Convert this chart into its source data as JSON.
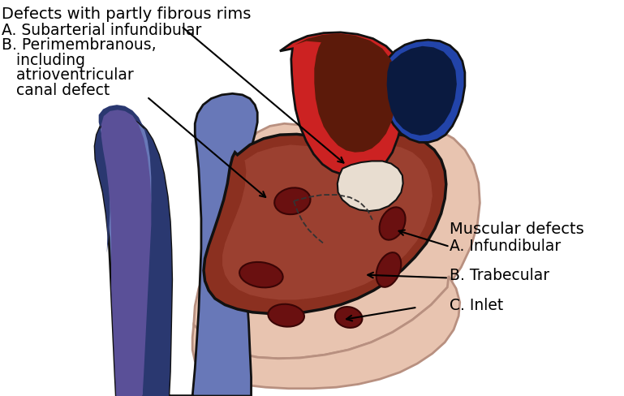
{
  "bg_color": "#ffffff",
  "text_color": "#000000",
  "fig_width": 9.99,
  "fig_height": 6.34,
  "colors": {
    "heart_main": "#8B3020",
    "heart_mid": "#7A2A1A",
    "heart_dark": "#5C1A0A",
    "heart_surface": "#9B4030",
    "pericardium": "#E8C4B0",
    "pericardium_dark": "#D4A898",
    "pericardium_outline": "#B89080",
    "blue_main": "#4A5FA0",
    "blue_light": "#6878B8",
    "blue_dark": "#2A3870",
    "blue_purple": "#5A5098",
    "red_main": "#CC2222",
    "red_dark": "#8B1010",
    "red_light": "#DD4444",
    "blue2_main": "#2244AA",
    "defect_fill": "#6A1010",
    "defect_edge": "#3A0505",
    "white_tissue": "#E8DDD0",
    "outline": "#111111",
    "cream": "#F0E8E0"
  }
}
